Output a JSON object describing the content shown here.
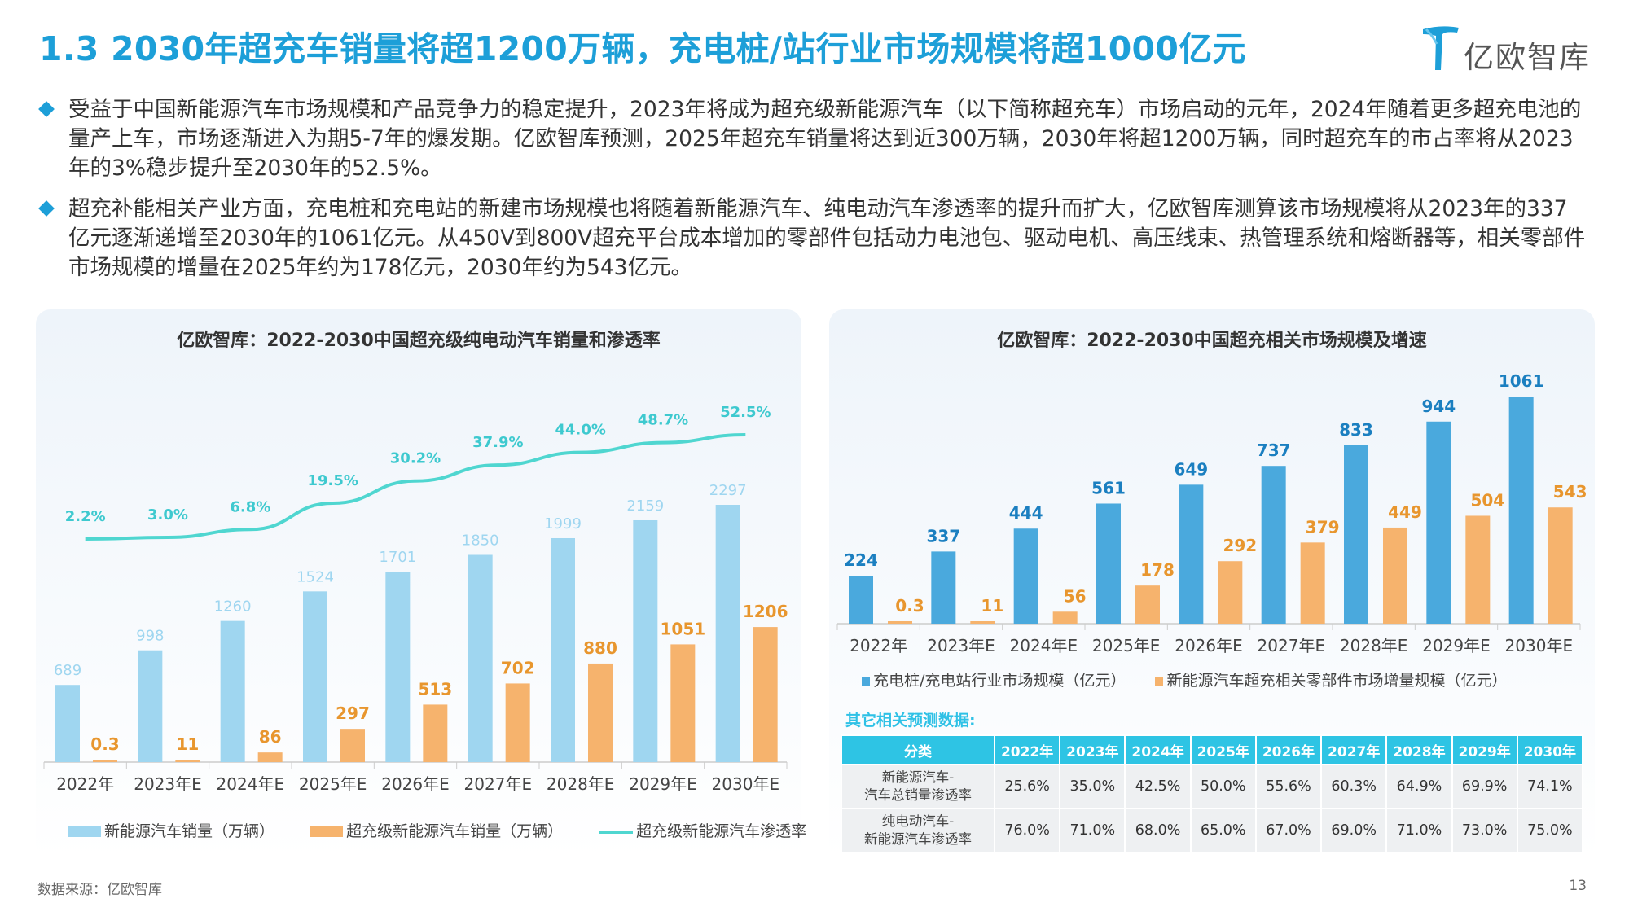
{
  "page": {
    "title": "1.3 2030年超充车销量将超1200万辆，充电桩/站行业市场规模将超1000亿元",
    "logo_text": "亿欧智库",
    "source": "数据来源：亿欧智库",
    "page_number": "13",
    "accent_color": "#1d9fd8"
  },
  "bullets": [
    "受益于中国新能源汽车市场规模和产品竞争力的稳定提升，2023年将成为超充级新能源汽车（以下简称超充车）市场启动的元年，2024年随着更多超充电池的量产上车，市场逐渐进入为期5-7年的爆发期。亿欧智库预测，2025年超充车销量将达到近300万辆，2030年将超1200万辆，同时超充车的市占率将从2023年的3%稳步提升至2030年的52.5%。",
    "超充补能相关产业方面，充电桩和充电站的新建市场规模也将随着新能源汽车、纯电动汽车渗透率的提升而扩大，亿欧智库测算该市场规模将从2023年的337亿元逐渐递增至2030年的1061亿元。从450V到800V超充平台成本增加的零部件包括动力电池包、驱动电机、高压线束、热管理系统和熔断器等，相关零部件市场规模的增量在2025年约为178亿元，2030年约为543亿元。"
  ],
  "chart_data": [
    {
      "type": "bar",
      "title": "亿欧智库：2022-2030中国超充级纯电动汽车销量和渗透率",
      "categories": [
        "2022年",
        "2023年E",
        "2024年E",
        "2025年E",
        "2026年E",
        "2027年E",
        "2028年E",
        "2029年E",
        "2030年E"
      ],
      "series": [
        {
          "name": "新能源汽车销量（万辆）",
          "kind": "bar",
          "color": "#9fd6f0",
          "values": [
            689,
            998,
            1260,
            1524,
            1701,
            1850,
            1999,
            2159,
            2297
          ],
          "labels": [
            "689",
            "998",
            "1260",
            "1524",
            "1701",
            "1850",
            "1999",
            "2159",
            "2297"
          ]
        },
        {
          "name": "超充级新能源汽车销量（万辆）",
          "kind": "bar",
          "color": "#f6b36d",
          "values": [
            0.3,
            11,
            86,
            297,
            513,
            702,
            880,
            1051,
            1206
          ],
          "labels": [
            "0.3",
            "11",
            "86",
            "297",
            "513",
            "702",
            "880",
            "1051",
            "1206"
          ]
        },
        {
          "name": "超充级新能源汽车渗透率",
          "kind": "line",
          "color": "#4fd6d0",
          "values": [
            2.2,
            3.0,
            6.8,
            19.5,
            30.2,
            37.9,
            44.0,
            48.7,
            52.5
          ],
          "labels": [
            "2.2%",
            "3.0%",
            "6.8%",
            "19.5%",
            "30.2%",
            "37.9%",
            "44.0%",
            "48.7%",
            "52.5%"
          ]
        }
      ],
      "legend_position": "bottom",
      "grid": false
    },
    {
      "type": "bar",
      "title": "亿欧智库：2022-2030中国超充相关市场规模及增速",
      "categories": [
        "2022年",
        "2023年E",
        "2024年E",
        "2025年E",
        "2026年E",
        "2027年E",
        "2028年E",
        "2029年E",
        "2030年E"
      ],
      "series": [
        {
          "name": "充电桩/充电站行业市场规模（亿元）",
          "kind": "bar",
          "color": "#4aa9dd",
          "values": [
            224,
            337,
            444,
            561,
            649,
            737,
            833,
            944,
            1061
          ],
          "labels": [
            "224",
            "337",
            "444",
            "561",
            "649",
            "737",
            "833",
            "944",
            "1061"
          ]
        },
        {
          "name": "新能源汽车超充相关零部件市场增量规模（亿元）",
          "kind": "bar",
          "color": "#f6b36d",
          "values": [
            0.3,
            11,
            56,
            178,
            292,
            379,
            449,
            504,
            543
          ],
          "labels": [
            "0.3",
            "11",
            "56",
            "178",
            "292",
            "379",
            "449",
            "504",
            "543"
          ]
        }
      ],
      "legend_position": "bottom",
      "grid": false
    },
    {
      "type": "table",
      "title": "其它相关预测数据:",
      "columns": [
        "分类",
        "2022年",
        "2023年",
        "2024年",
        "2025年",
        "2026年",
        "2027年",
        "2028年",
        "2029年",
        "2030年"
      ],
      "rows": [
        {
          "label_line1": "新能源汽车-",
          "label_line2": "汽车总销量渗透率",
          "cells": [
            "25.6%",
            "35.0%",
            "42.5%",
            "50.0%",
            "55.6%",
            "60.3%",
            "64.9%",
            "69.9%",
            "74.1%"
          ]
        },
        {
          "label_line1": "纯电动汽车-",
          "label_line2": "新能源汽车渗透率",
          "cells": [
            "76.0%",
            "71.0%",
            "68.0%",
            "65.0%",
            "67.0%",
            "69.0%",
            "71.0%",
            "73.0%",
            "75.0%"
          ]
        }
      ]
    }
  ]
}
